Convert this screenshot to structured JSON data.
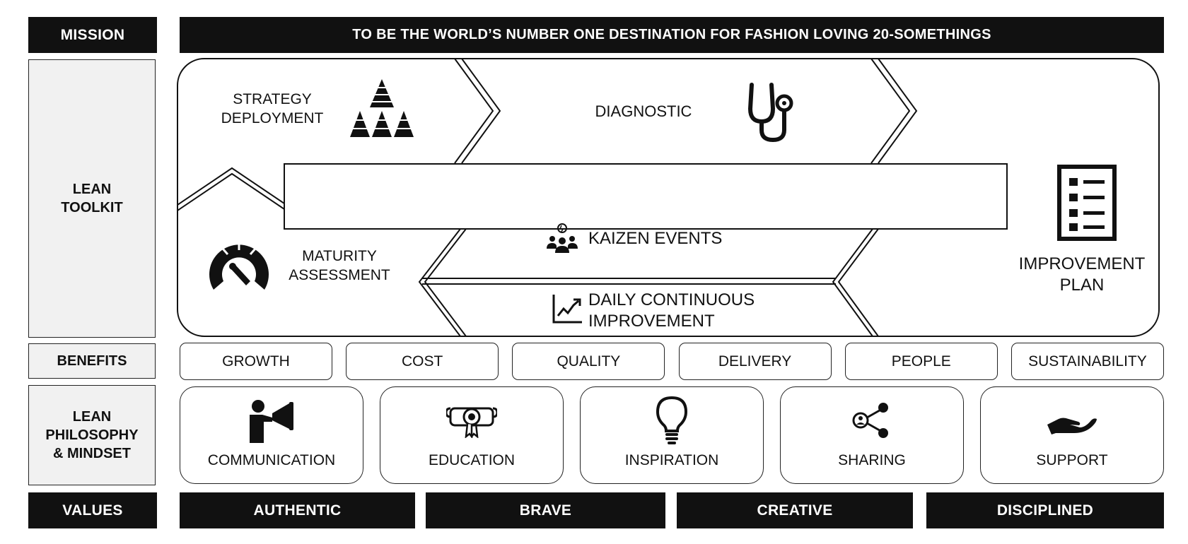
{
  "mission": {
    "label": "MISSION",
    "statement": "TO BE THE WORLD’S NUMBER ONE DESTINATION FOR FASHION LOVING 20-SOMETHINGS"
  },
  "lean_toolkit": {
    "label": "LEAN\nTOOLKIT",
    "strategy_deployment": "STRATEGY\nDEPLOYMENT",
    "diagnostic": "DIAGNOSTIC",
    "maturity_assessment": "MATURITY\nASSESSMENT",
    "kaizen_events": "KAIZEN EVENTS",
    "daily_continuous_improvement": "DAILY CONTINUOUS\nIMPROVEMENT",
    "improvement_plan": "IMPROVEMENT\nPLAN"
  },
  "benefits": {
    "label": "BENEFITS",
    "items": [
      "GROWTH",
      "COST",
      "QUALITY",
      "DELIVERY",
      "PEOPLE",
      "SUSTAINABILITY"
    ]
  },
  "philosophy": {
    "label": "LEAN\nPHILOSOPHY\n& MINDSET",
    "items": [
      {
        "label": "COMMUNICATION",
        "icon": "megaphone-person-icon"
      },
      {
        "label": "EDUCATION",
        "icon": "diploma-icon"
      },
      {
        "label": "INSPIRATION",
        "icon": "lightbulb-icon"
      },
      {
        "label": "SHARING",
        "icon": "share-icon"
      },
      {
        "label": "SUPPORT",
        "icon": "hand-icon"
      }
    ]
  },
  "values": {
    "label": "VALUES",
    "items": [
      "AUTHENTIC",
      "BRAVE",
      "CREATIVE",
      "DISCIPLINED"
    ]
  },
  "colors": {
    "primary": "#111111",
    "label_background": "#f1f1f1",
    "background": "#ffffff"
  }
}
